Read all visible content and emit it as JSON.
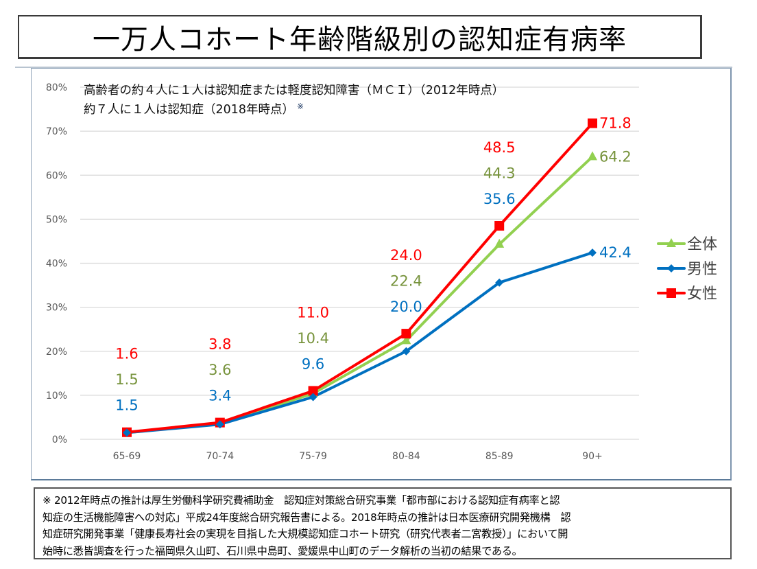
{
  "page": {
    "title": "一万人コホート年齢階級別の認知症有病率"
  },
  "annotations": {
    "line1": "高齢者の約４人に１人は認知症または軽度認知障害（ＭＣＩ）（2012年時点）",
    "line2": "約７人に１人は認知症（2018年時点）",
    "line2_mark": "※"
  },
  "footer": {
    "lines": [
      "※ 2012年時点の推計は厚生労働科学研究費補助金　認知症対策総合研究事業「都市部における認知症有病率と認",
      "知症の生活機能障害への対応」平成24年度総合研究報告書による。2018年時点の推計は日本医療研究開発機構　認",
      "知症研究開発事業「健康長寿社会の実現を目指した大規模認知症コホート研究（研究代表者二宮教授）」において開",
      "始時に悉皆調査を行った福岡県久山町、石川県中島町、愛媛県中山町のデータ解析の当初の結果である。"
    ]
  },
  "chart_data": {
    "type": "line",
    "title": "一万人コホート年齢階級別の認知症有病率",
    "xlabel": "",
    "ylabel": "",
    "categories": [
      "65-69",
      "70-74",
      "75-79",
      "80-84",
      "85-89",
      "90+"
    ],
    "ylim": [
      0,
      80
    ],
    "yticks": [
      0,
      10,
      20,
      30,
      40,
      50,
      60,
      70,
      80
    ],
    "ytick_labels": [
      "0%",
      "10%",
      "20%",
      "30%",
      "40%",
      "50%",
      "60%",
      "70%",
      "80%"
    ],
    "grid": true,
    "legend_position": "right",
    "series": [
      {
        "name": "全体",
        "color": "#92d050",
        "label_color": "#77933c",
        "marker": "triangle",
        "values": [
          1.5,
          3.6,
          10.4,
          22.4,
          44.3,
          64.2
        ],
        "labels": [
          "1.5",
          "3.6",
          "10.4",
          "22.4",
          "44.3",
          "64.2"
        ]
      },
      {
        "name": "男性",
        "color": "#0070c0",
        "label_color": "#0070c0",
        "marker": "diamond",
        "values": [
          1.5,
          3.4,
          9.6,
          20.0,
          35.6,
          42.4
        ],
        "labels": [
          "1.5",
          "3.4",
          "9.6",
          "20.0",
          "35.6",
          "42.4"
        ]
      },
      {
        "name": "女性",
        "color": "#ff0000",
        "label_color": "#ff0000",
        "marker": "square",
        "values": [
          1.6,
          3.8,
          11.0,
          24.0,
          48.5,
          71.8
        ],
        "labels": [
          "1.6",
          "3.8",
          "11.0",
          "24.0",
          "48.5",
          "71.8"
        ]
      }
    ]
  }
}
